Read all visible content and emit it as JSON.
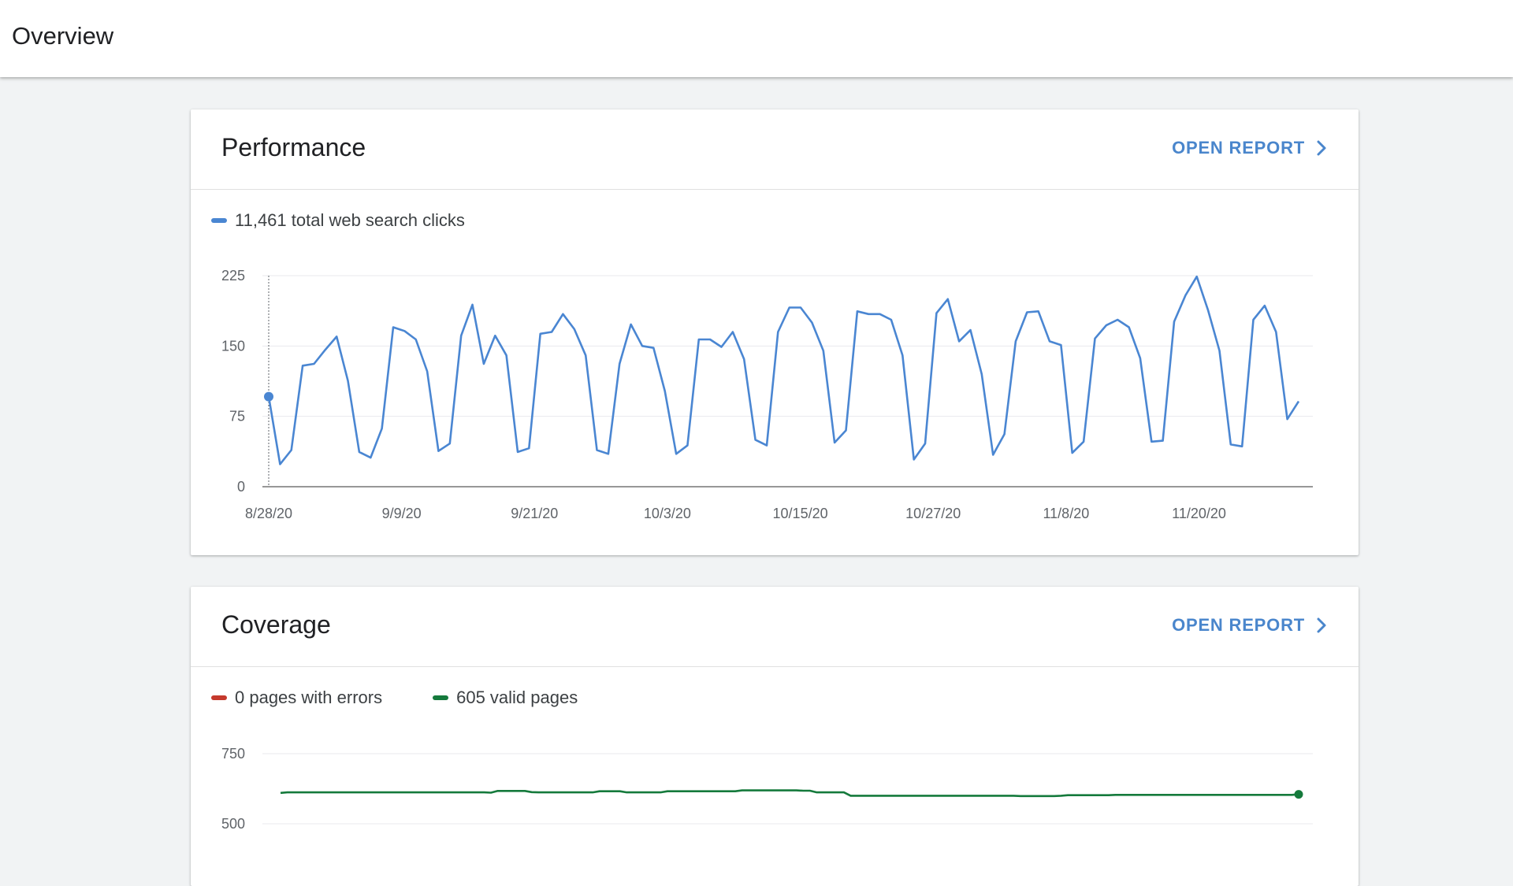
{
  "header": {
    "title": "Overview"
  },
  "colors": {
    "clicks": "#4a86d2",
    "errors": "#c5392d",
    "valid": "#157a3c",
    "link": "#4a86cc"
  },
  "performance": {
    "title": "Performance",
    "open_report": "OPEN REPORT",
    "legend": [
      {
        "label": "11,461 total web search clicks",
        "color": "#4a86d2"
      }
    ]
  },
  "coverage": {
    "title": "Coverage",
    "open_report": "OPEN REPORT",
    "legend": [
      {
        "label": "0 pages with errors",
        "color": "#c5392d"
      },
      {
        "label": "605 valid pages",
        "color": "#157a3c"
      }
    ]
  },
  "chart_data": [
    {
      "type": "line",
      "ylim": [
        0,
        225
      ],
      "yticks": [
        "0",
        "75",
        "150",
        "225"
      ],
      "xtick_labels": [
        "8/28/20",
        "9/9/20",
        "9/21/20",
        "10/3/20",
        "10/15/20",
        "10/27/20",
        "11/8/20",
        "11/20/20"
      ],
      "x_start": "8/28/20",
      "x_end": "11/29/20",
      "highlight_point": {
        "x": "8/28/20",
        "y": 96
      },
      "series": [
        {
          "name": "11,461 total web search clicks",
          "color": "#4a86d2",
          "values": [
            96,
            24,
            39,
            129,
            131,
            146,
            160,
            113,
            37,
            31,
            62,
            170,
            166,
            157,
            123,
            38,
            46,
            161,
            194,
            131,
            161,
            140,
            37,
            41,
            163,
            165,
            184,
            168,
            140,
            39,
            35,
            131,
            173,
            150,
            148,
            102,
            35,
            44,
            157,
            157,
            149,
            165,
            136,
            50,
            44,
            165,
            191,
            191,
            175,
            145,
            47,
            60,
            187,
            184,
            184,
            178,
            140,
            29,
            46,
            185,
            200,
            155,
            167,
            120,
            34,
            56,
            155,
            186,
            187,
            155,
            151,
            36,
            48,
            158,
            172,
            178,
            170,
            137,
            48,
            49,
            176,
            204,
            224,
            188,
            145,
            45,
            43,
            178,
            193,
            165,
            72,
            91
          ]
        }
      ]
    },
    {
      "type": "line",
      "ylim": [
        500,
        750
      ],
      "yticks": [
        "500",
        "750"
      ],
      "series": [
        {
          "name": "605 valid pages",
          "color": "#157a3c",
          "values": [
            610,
            612,
            612,
            612,
            612,
            612,
            612,
            612,
            612,
            612,
            612,
            612,
            612,
            612,
            612,
            612,
            612,
            612,
            612,
            612,
            612,
            612,
            612,
            612,
            612,
            612,
            612,
            612,
            612,
            612,
            612,
            611,
            617,
            617,
            617,
            617,
            617,
            613,
            612,
            612,
            612,
            612,
            612,
            612,
            612,
            612,
            612,
            616,
            616,
            616,
            616,
            612,
            612,
            612,
            612,
            612,
            612,
            616,
            616,
            616,
            616,
            616,
            616,
            616,
            616,
            616,
            616,
            616,
            619,
            619,
            619,
            619,
            619,
            619,
            619,
            619,
            619,
            618,
            618,
            612,
            612,
            612,
            612,
            612,
            600,
            600,
            600,
            600,
            600,
            600,
            600,
            600,
            600,
            600,
            600,
            600,
            600,
            600,
            600,
            600,
            600,
            600,
            600,
            600,
            600,
            600,
            600,
            600,
            600,
            599,
            599,
            599,
            599,
            599,
            599,
            600,
            602,
            602,
            602,
            602,
            602,
            602,
            602,
            603,
            603,
            603,
            603,
            603,
            603,
            603,
            603,
            603,
            603,
            603,
            603,
            603,
            603,
            603,
            603,
            603,
            603,
            603,
            603,
            603,
            603,
            603,
            603,
            603,
            603,
            603,
            605
          ]
        }
      ]
    }
  ]
}
